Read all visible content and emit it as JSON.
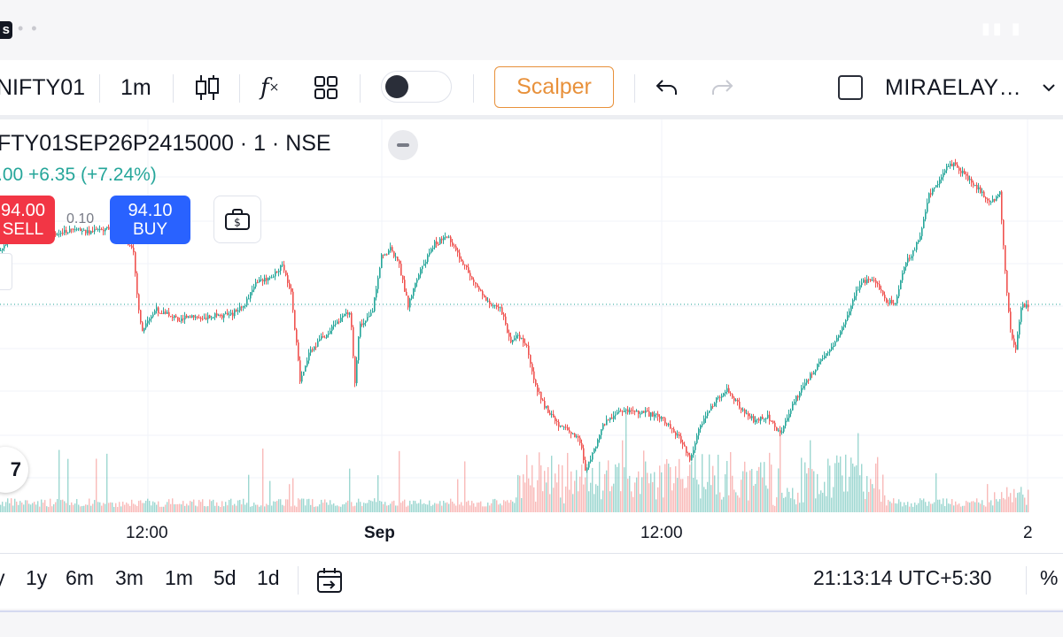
{
  "status": {
    "app_badge": "s"
  },
  "toolbar": {
    "symbol": "NIFTY01",
    "interval": "1m",
    "scalper_label": "Scalper",
    "account": "MIRAELAY…"
  },
  "legend": {
    "title": "FTY01SEP26P2415000 · 1 · NSE",
    "change": ".00  +6.35 (+7.24%)"
  },
  "trade": {
    "sell_price": "94.00",
    "sell_label": "SELL",
    "spread": "0.10",
    "buy_price": "94.10",
    "buy_label": "BUY"
  },
  "xaxis": {
    "labels": [
      "12:00",
      "Sep",
      "12:00",
      "2"
    ]
  },
  "bottombar": {
    "ranges": [
      "y",
      "1y",
      "6m",
      "3m",
      "1m",
      "5d",
      "1d"
    ],
    "clock": "21:13:14 UTC+5:30",
    "percent": "%"
  },
  "colors": {
    "up": "#26a69a",
    "down": "#ef5350",
    "sell": "#f23645",
    "buy": "#2962ff",
    "accent": "#e8913b"
  },
  "chart_data": {
    "type": "candlestick",
    "x_ticks": [
      "12:00",
      "Sep",
      "12:00",
      "2"
    ],
    "y_axis_visible": false,
    "price_path": [
      [
        0,
        283
      ],
      [
        10,
        272
      ],
      [
        25,
        262
      ],
      [
        45,
        258
      ],
      [
        60,
        266
      ],
      [
        80,
        260
      ],
      [
        100,
        262
      ],
      [
        120,
        258
      ],
      [
        135,
        265
      ],
      [
        150,
        285
      ],
      [
        155,
        345
      ],
      [
        160,
        375
      ],
      [
        175,
        350
      ],
      [
        200,
        360
      ],
      [
        230,
        358
      ],
      [
        260,
        356
      ],
      [
        275,
        345
      ],
      [
        290,
        318
      ],
      [
        305,
        315
      ],
      [
        318,
        300
      ],
      [
        328,
        330
      ],
      [
        338,
        430
      ],
      [
        348,
        400
      ],
      [
        360,
        385
      ],
      [
        380,
        365
      ],
      [
        395,
        350
      ],
      [
        400,
        435
      ],
      [
        405,
        370
      ],
      [
        420,
        350
      ],
      [
        430,
        290
      ],
      [
        440,
        282
      ],
      [
        450,
        300
      ],
      [
        460,
        345
      ],
      [
        470,
        315
      ],
      [
        490,
        275
      ],
      [
        505,
        268
      ],
      [
        520,
        295
      ],
      [
        535,
        320
      ],
      [
        550,
        340
      ],
      [
        565,
        350
      ],
      [
        575,
        385
      ],
      [
        585,
        380
      ],
      [
        595,
        395
      ],
      [
        605,
        440
      ],
      [
        615,
        460
      ],
      [
        630,
        480
      ],
      [
        645,
        490
      ],
      [
        655,
        500
      ],
      [
        660,
        530
      ],
      [
        670,
        510
      ],
      [
        680,
        480
      ],
      [
        700,
        465
      ],
      [
        720,
        465
      ],
      [
        740,
        470
      ],
      [
        755,
        480
      ],
      [
        770,
        500
      ],
      [
        778,
        520
      ],
      [
        790,
        480
      ],
      [
        805,
        455
      ],
      [
        820,
        440
      ],
      [
        835,
        460
      ],
      [
        850,
        475
      ],
      [
        865,
        470
      ],
      [
        880,
        490
      ],
      [
        895,
        455
      ],
      [
        910,
        430
      ],
      [
        925,
        410
      ],
      [
        940,
        390
      ],
      [
        955,
        360
      ],
      [
        970,
        320
      ],
      [
        985,
        315
      ],
      [
        1000,
        340
      ],
      [
        1010,
        345
      ],
      [
        1020,
        300
      ],
      [
        1030,
        285
      ],
      [
        1040,
        260
      ],
      [
        1048,
        220
      ],
      [
        1058,
        210
      ],
      [
        1065,
        190
      ],
      [
        1075,
        185
      ],
      [
        1090,
        200
      ],
      [
        1105,
        215
      ],
      [
        1118,
        230
      ],
      [
        1128,
        215
      ],
      [
        1133,
        295
      ],
      [
        1140,
        375
      ],
      [
        1146,
        395
      ],
      [
        1152,
        345
      ],
      [
        1160,
        345
      ]
    ]
  }
}
